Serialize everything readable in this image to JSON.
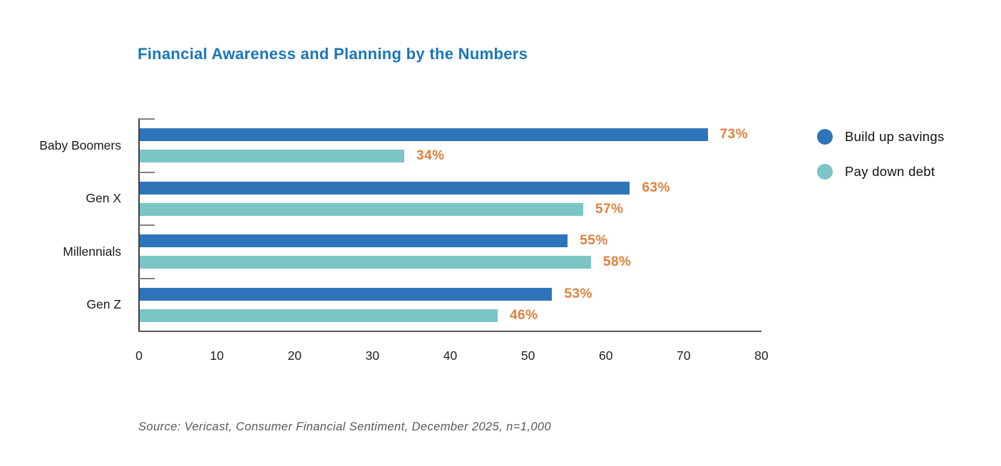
{
  "title": "Financial Awareness and Planning by the Numbers",
  "source": "Source: Vericast, Consumer Financial Sentiment, December 2025, n=1,000",
  "colors": {
    "savings_bar": "#2E74B8",
    "debt_bar": "#7BC5C6",
    "value_label": "#E0803E",
    "title_text": "#1B75BC",
    "axis_line": "#3d3d3d",
    "group_tick": "#808284",
    "source_text": "#57585A"
  },
  "legend": {
    "position": "right",
    "items": [
      {
        "label": "Build up savings",
        "color": "#2E74B8"
      },
      {
        "label": "Pay down debt",
        "color": "#7BC5C6"
      }
    ]
  },
  "chart_data": {
    "type": "bar",
    "orientation": "horizontal",
    "title": "Financial Awareness and Planning by the Numbers",
    "categories": [
      "Baby Boomers",
      "Gen X",
      "Millennials",
      "Gen Z"
    ],
    "series": [
      {
        "name": "Build up savings",
        "color": "#2E74B8",
        "values": [
          73,
          63,
          55,
          53
        ]
      },
      {
        "name": "Pay down debt",
        "color": "#7BC5C6",
        "values": [
          34,
          57,
          58,
          46
        ]
      }
    ],
    "value_suffix": "%",
    "xlim": [
      0,
      80
    ],
    "x_ticks": [
      0,
      10,
      20,
      30,
      40,
      50,
      60,
      70,
      80
    ],
    "grid": false,
    "legend_position": "right"
  }
}
